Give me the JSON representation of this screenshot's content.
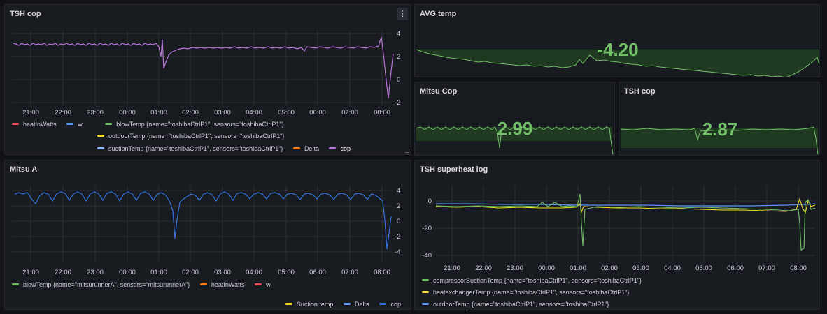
{
  "colors": {
    "red": "#f2495c",
    "blue": "#5794f2",
    "green": "#73bf69",
    "yellow": "#fade2a",
    "lightblue": "#8ab8ff",
    "orange": "#ff780a",
    "purple": "#b877d9",
    "series_blue": "#3274d9"
  },
  "panels": {
    "tsh_cop_graph": {
      "title": "TSH cop",
      "menu_icon": "vertical-dots-icon",
      "x_ticks": [
        "21:00",
        "22:00",
        "23:00",
        "00:00",
        "01:00",
        "02:00",
        "03:00",
        "04:00",
        "05:00",
        "06:00",
        "07:00",
        "08:00"
      ],
      "y_ticks": [
        "4",
        "2",
        "0",
        "-2"
      ],
      "legend": [
        {
          "label": "heatInWatts",
          "color": "#f2495c"
        },
        {
          "label": "w",
          "color": "#5794f2"
        },
        {
          "label": "blowTemp {name=\"toshibaCtrlP1\", sensors=\"toshibaCtrlP1\"}",
          "color": "#73bf69"
        },
        {
          "label": "outdoorTemp {name=\"toshibaCtrlP1\", sensors=\"toshibaCtrlP1\"}",
          "color": "#fade2a"
        },
        {
          "label": "suctionTemp {name=\"toshibaCtrlP1\", sensors=\"toshibaCtrlP1\"}",
          "color": "#8ab8ff"
        },
        {
          "label": "Delta",
          "color": "#ff780a"
        },
        {
          "label": "cop",
          "color": "#b877d9"
        }
      ]
    },
    "avg_temp": {
      "title": "AVG temp",
      "value": "-4.20"
    },
    "mitsu_cop": {
      "title": "Mitsu Cop",
      "value": "2.99"
    },
    "tsh_cop_stat": {
      "title": "TSH cop",
      "value": "2.87"
    },
    "mitsu_a": {
      "title": "Mitsu A",
      "x_ticks": [
        "21:00",
        "22:00",
        "23:00",
        "00:00",
        "01:00",
        "02:00",
        "03:00",
        "04:00",
        "05:00",
        "06:00",
        "07:00",
        "08:00"
      ],
      "y_ticks": [
        "4",
        "2",
        "0",
        "-2",
        "-4"
      ],
      "legend": [
        {
          "label": "blowTemp {name=\"mitsurunnerA\", sensors=\"mitsurunnerA\"}",
          "color": "#73bf69"
        },
        {
          "label": "heatInWatts",
          "color": "#ff780a"
        },
        {
          "label": "w",
          "color": "#f2495c"
        },
        {
          "label": "Suction temp",
          "color": "#fade2a"
        },
        {
          "label": "Delta",
          "color": "#5794f2"
        },
        {
          "label": "cop",
          "color": "#3274d9"
        }
      ]
    },
    "tsh_superheat": {
      "title": "TSH superheat log",
      "x_ticks": [
        "21:00",
        "22:00",
        "23:00",
        "00:00",
        "01:00",
        "02:00",
        "03:00",
        "04:00",
        "05:00",
        "06:00",
        "07:00",
        "08:00"
      ],
      "y_ticks": [
        "0",
        "-20",
        "-40"
      ],
      "legend": [
        {
          "label": "compressorSuctionTemp {name=\"toshibaCtrlP1\", sensors=\"toshibaCtrlP1\"}",
          "color": "#73bf69"
        },
        {
          "label": "heatexchangerTemp {name=\"toshibaCtrlP1\", sensors=\"toshibaCtrlP1\"}",
          "color": "#fade2a"
        },
        {
          "label": "outdoorTemp {name=\"toshibaCtrlP1\", sensors=\"toshibaCtrlP1\"}",
          "color": "#5794f2"
        }
      ]
    }
  }
}
